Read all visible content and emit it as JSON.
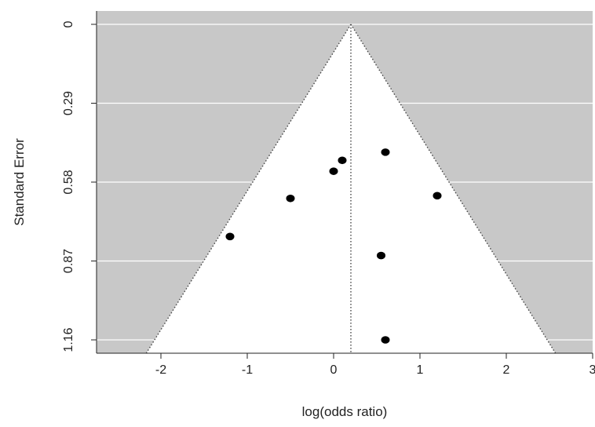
{
  "chart_data": {
    "type": "scatter",
    "subtype": "funnel-plot",
    "title": "",
    "xlabel": "log(odds ratio)",
    "ylabel": "Standard Error",
    "xlim": [
      -2.75,
      3.0
    ],
    "ylim": [
      0,
      1.16
    ],
    "y_reversed": true,
    "x_ticks": [
      -2,
      -1,
      0,
      1,
      2,
      3
    ],
    "x_tick_labels": [
      "-2",
      "-1",
      "0",
      "1",
      "2",
      "3"
    ],
    "y_ticks": [
      0,
      0.29,
      0.58,
      0.87,
      1.16
    ],
    "y_tick_labels": [
      "0",
      "0.29",
      "0.58",
      "0.87",
      "1.16"
    ],
    "grid": true,
    "pooled_estimate": 0.2,
    "funnel_z": 1.96,
    "colors": {
      "region_outside": "#c8c8c8",
      "region_inside": "#ffffff",
      "gridline": "#ffffff",
      "points": "#000000",
      "funnel_line": "#444444"
    },
    "points": [
      {
        "x": 0.6,
        "y": 0.47
      },
      {
        "x": 0.1,
        "y": 0.5
      },
      {
        "x": 0.0,
        "y": 0.54
      },
      {
        "x": 1.2,
        "y": 0.63
      },
      {
        "x": -0.5,
        "y": 0.64
      },
      {
        "x": -1.2,
        "y": 0.78
      },
      {
        "x": 0.55,
        "y": 0.85
      },
      {
        "x": 0.6,
        "y": 1.16
      }
    ]
  }
}
